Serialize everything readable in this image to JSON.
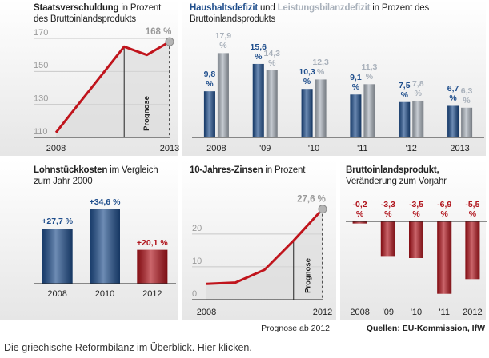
{
  "chart_data": [
    {
      "type": "line",
      "title": "Staatsverschuldung",
      "subtitle": "in Prozent des Bruttoinlandsprodukts",
      "x": [
        2008,
        2011,
        2012,
        2013
      ],
      "values": [
        113,
        165,
        160,
        168
      ],
      "value_labels": [
        null,
        null,
        null,
        "168 %"
      ],
      "color": "#c0141c",
      "xlim": [
        2008,
        2013
      ],
      "xticks": [
        2008,
        2013
      ],
      "ylim": [
        110,
        170
      ],
      "yticks": [
        110,
        130,
        150,
        170
      ],
      "grid": true,
      "annotation": "Prognose",
      "forecast_from": 2011
    },
    {
      "type": "bar",
      "subtitle": "in Prozent des Bruttoinlandsprodukts",
      "connector": "und",
      "categories": [
        "2008",
        "'09",
        "'10",
        "'11",
        "'12",
        "2013"
      ],
      "series": [
        {
          "name": "Haushaltsdefizit",
          "color": "#1f4e8c",
          "values": [
            9.8,
            15.6,
            10.3,
            9.1,
            7.5,
            6.7
          ],
          "value_labels": [
            "9,8 %",
            "15,6 %",
            "10,3 %",
            "9,1 %",
            "7,5 %",
            "6,7 %"
          ]
        },
        {
          "name": "Leistungsbilanzdefizit",
          "color": "#a9b1bb",
          "values": [
            17.9,
            14.3,
            12.3,
            11.3,
            7.8,
            6.3
          ],
          "value_labels": [
            "17,9 %",
            "14,3 %",
            "12,3 %",
            "11,3 %",
            "7,8 %",
            "6,3 %"
          ]
        }
      ],
      "ylim": [
        0,
        20
      ]
    },
    {
      "type": "bar",
      "title": "Lohnstückkosten",
      "subtitle": "im Vergleich zum Jahr 2000",
      "categories": [
        "2008",
        "2010",
        "2012"
      ],
      "values": [
        27.7,
        34.6,
        20.1
      ],
      "value_labels": [
        "+27,7 %",
        "+34,6 %",
        "+20,1 %"
      ],
      "colors": [
        "#1f4e8c",
        "#1f4e8c",
        "#b0141c"
      ],
      "ylim": [
        8,
        38
      ]
    },
    {
      "type": "line",
      "title": "10-Jahres-Zinsen",
      "subtitle": "in Prozent",
      "x": [
        2008,
        2009,
        2010,
        2011,
        2012
      ],
      "values": [
        4.8,
        5.2,
        9.1,
        18,
        27.6
      ],
      "value_labels": [
        null,
        null,
        null,
        null,
        "27,6 %"
      ],
      "color": "#c0141c",
      "xlim": [
        2008,
        2012
      ],
      "xticks": [
        2008,
        2012
      ],
      "ylim": [
        0,
        28
      ],
      "yticks": [
        0,
        10,
        20
      ],
      "grid": true,
      "annotation": "Prognose",
      "forecast_from": 2011,
      "note": "Prognose ab 2012"
    },
    {
      "type": "bar",
      "title": "Bruttoinlandsprodukt,",
      "subtitle": "Veränderung zum Vorjahr",
      "categories": [
        "2008",
        "'09",
        "'10",
        "'11",
        "2012"
      ],
      "values": [
        -0.2,
        -3.3,
        -3.5,
        -6.9,
        -5.5
      ],
      "value_labels": [
        "-0,2 %",
        "-3,3 %",
        "-3,5 %",
        "-6,9 %",
        "-5,5 %"
      ],
      "color": "#b0141c",
      "ylim": [
        -7,
        0
      ]
    }
  ],
  "source": "Quellen: EU-Kommission, IfW",
  "caption": "Die griechische Reformbilanz im Überblick. Hier klicken."
}
